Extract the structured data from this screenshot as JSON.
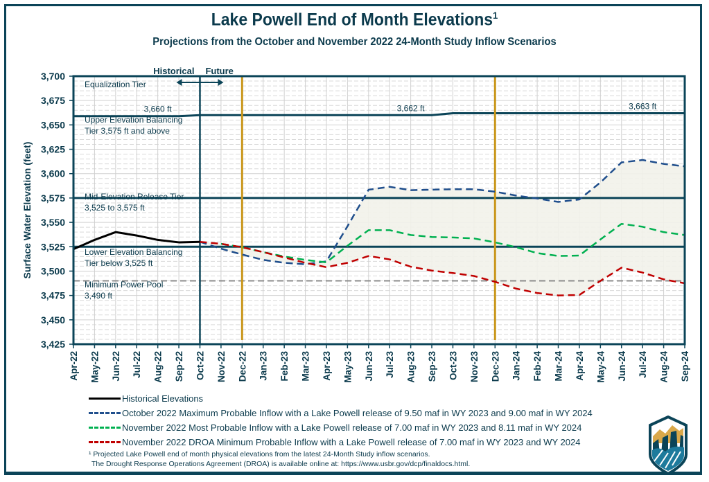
{
  "title": "Lake Powell End of Month Elevations",
  "title_superscript": "1",
  "subtitle": "Projections from the October and November 2022 24-Month Study Inflow Scenarios",
  "colors": {
    "frame": "#0b4458",
    "tier_lines": "#0b4458",
    "text": "#0b3a4c",
    "historical": "#000000",
    "max_probable": "#1f4e8c",
    "most_probable": "#00b050",
    "min_probable": "#c00000",
    "min_power_pool": "#8c8c8c",
    "study_marker": "#c9961a",
    "shade": "#f2f2ea"
  },
  "chart_data": {
    "type": "line",
    "title": "Lake Powell End of Month Elevations",
    "subtitle": "Projections from the October and November 2022 24-Month Study Inflow Scenarios",
    "xlabel": "",
    "ylabel": "Surface Water Elevation (feet)",
    "ylim": [
      3425,
      3700
    ],
    "yticks": [
      3425,
      3450,
      3475,
      3500,
      3525,
      3550,
      3575,
      3600,
      3625,
      3650,
      3675,
      3700
    ],
    "ytick_labels": [
      "3,425",
      "3,450",
      "3,475",
      "3,500",
      "3,525",
      "3,550",
      "3,575",
      "3,600",
      "3,625",
      "3,650",
      "3,675",
      "3,700"
    ],
    "grid": true,
    "categories": [
      "Apr-22",
      "May-22",
      "Jun-22",
      "Jul-22",
      "Aug-22",
      "Sep-22",
      "Oct-22",
      "Nov-22",
      "Dec-22",
      "Jan-23",
      "Feb-23",
      "Mar-23",
      "Apr-23",
      "May-23",
      "Jun-23",
      "Jul-23",
      "Aug-23",
      "Sep-23",
      "Oct-23",
      "Nov-23",
      "Dec-23",
      "Jan-24",
      "Feb-24",
      "Mar-24",
      "Apr-24",
      "May-24",
      "Jun-24",
      "Jul-24",
      "Aug-24",
      "Sep-24"
    ],
    "series": [
      {
        "name": "Historical Elevations",
        "style": "solid",
        "color_key": "historical",
        "values": [
          3522.5,
          3532,
          3540,
          3536.5,
          3532,
          3529.5,
          3530,
          null,
          null,
          null,
          null,
          null,
          null,
          null,
          null,
          null,
          null,
          null,
          null,
          null,
          null,
          null,
          null,
          null,
          null,
          null,
          null,
          null,
          null,
          null
        ]
      },
      {
        "name": "October 2022 Maximum Probable Inflow with a Lake Powell release of 9.50 maf in WY 2023 and 9.00 maf in WY 2024",
        "style": "dashed",
        "color_key": "max_probable",
        "values": [
          null,
          null,
          null,
          null,
          null,
          null,
          3530,
          3523,
          3517,
          3511.5,
          3508.5,
          3507,
          3510,
          3546,
          3583.5,
          3586.5,
          3583,
          3583.5,
          3584,
          3584,
          3581.5,
          3577.5,
          3574.5,
          3571,
          3573.5,
          3591,
          3611.5,
          3614,
          3610,
          3607.5
        ]
      },
      {
        "name": "November 2022 Most Probable Inflow with a Lake Powell release of 7.00 maf in WY 2023 and 8.11 maf in WY 2024",
        "style": "dashed",
        "color_key": "most_probable",
        "values": [
          null,
          null,
          null,
          null,
          null,
          null,
          null,
          3528,
          3524.5,
          3519.5,
          3515,
          3511.5,
          3509,
          3526,
          3542,
          3542,
          3537,
          3535,
          3534.5,
          3533.5,
          3529.5,
          3524.5,
          3518.5,
          3515.5,
          3516,
          3532.5,
          3548.5,
          3545.5,
          3540,
          3537
        ]
      },
      {
        "name": "November 2022 DROA Minimum Probable Inflow with a Lake Powell release of 7.00 maf in WY 2023 and  WY 2024",
        "style": "dashed",
        "color_key": "min_probable",
        "values": [
          null,
          null,
          null,
          null,
          null,
          null,
          3530,
          3528,
          3524.5,
          3519.5,
          3514,
          3508.5,
          3504,
          3508.5,
          3515.5,
          3512,
          3504.5,
          3500.5,
          3498,
          3495,
          3489,
          3482,
          3477.5,
          3475,
          3475.5,
          3490,
          3503.5,
          3498.5,
          3491.5,
          3487.5
        ]
      }
    ],
    "tiers": [
      {
        "label_lines": [
          "Equalization Tier"
        ]
      },
      {
        "label_lines": [
          "Upper Elevation Balancing",
          "Tier 3,575 ft and above"
        ]
      },
      {
        "label_lines": [
          "Mid-Elevation Release Tier",
          "3,525 to 3,575 ft"
        ]
      },
      {
        "label_lines": [
          "Lower Elevation Balancing",
          "Tier below 3,525 ft"
        ]
      },
      {
        "label_lines": [
          "Minimum Power Pool",
          "3,490 ft"
        ]
      }
    ],
    "equalization_line": {
      "values": [
        3659,
        3659,
        3659,
        3659,
        3659,
        3659,
        3660,
        3660,
        3660,
        3660,
        3660,
        3660,
        3660,
        3660,
        3660,
        3660,
        3660,
        3660,
        3662,
        3662,
        3662,
        3662,
        3662,
        3662,
        3662,
        3662,
        3662,
        3662,
        3662,
        3662
      ],
      "labels": [
        {
          "text": "3,660 ft",
          "at": "Aug-22"
        },
        {
          "text": "3,662 ft",
          "at": "Aug-23"
        },
        {
          "text": "3,663 ft",
          "at": "Jul-24"
        }
      ]
    },
    "upper_balancing_threshold": 3575,
    "lower_balancing_threshold": 3525,
    "min_power_pool": 3490,
    "historical_future_divider": "Oct-22",
    "study_markers": [
      "Dec-22",
      "Dec-23"
    ],
    "annotations": {
      "historical": "Historical",
      "future": "Future"
    }
  },
  "legend": [
    {
      "label": "Historical Elevations",
      "color_key": "historical",
      "style": "solid"
    },
    {
      "label": "October 2022 Maximum Probable Inflow with a Lake Powell release of 9.50 maf in WY 2023 and 9.00 maf in WY 2024",
      "color_key": "max_probable",
      "style": "dashed"
    },
    {
      "label": "November 2022 Most Probable Inflow with a Lake Powell release of 7.00 maf in WY 2023 and 8.11 maf in WY 2024",
      "color_key": "most_probable",
      "style": "dashed"
    },
    {
      "label": "November 2022 DROA Minimum Probable Inflow with a Lake Powell release of 7.00 maf in WY 2023 and  WY 2024",
      "color_key": "min_probable",
      "style": "dashed"
    }
  ],
  "footnote": {
    "line1": "¹ Projected Lake Powell end of month physical elevations from the latest 24-Month Study inflow scenarios.",
    "line2": "The Drought Response Operations Agreement (DROA) is available online at: https://www.usbr.gov/dcp/finaldocs.html."
  },
  "logo": {
    "name": "bureau-of-reclamation-logo"
  }
}
